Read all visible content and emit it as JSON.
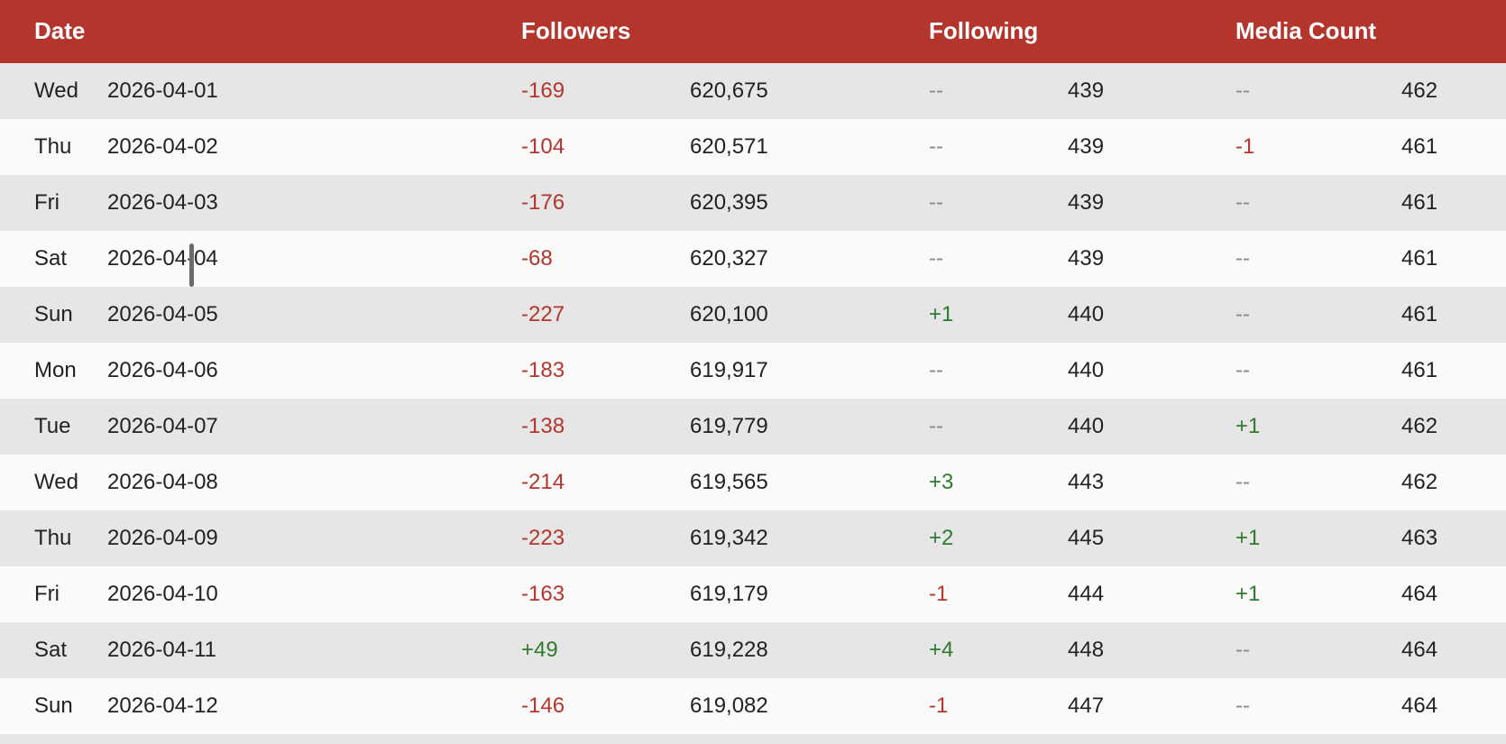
{
  "colors": {
    "header_bg": "#b4352c",
    "negative": "#b4352c",
    "positive": "#2f7a2f",
    "neutral": "#8a8a8a"
  },
  "header": {
    "date": "Date",
    "followers": "Followers",
    "following": "Following",
    "media_count": "Media Count"
  },
  "rows": [
    {
      "day": "Wed",
      "date": "2026-04-01",
      "followers_change": "-169",
      "followers": "620,675",
      "following_change": "--",
      "following": "439",
      "media_change": "--",
      "media": "462"
    },
    {
      "day": "Thu",
      "date": "2026-04-02",
      "followers_change": "-104",
      "followers": "620,571",
      "following_change": "--",
      "following": "439",
      "media_change": "-1",
      "media": "461"
    },
    {
      "day": "Fri",
      "date": "2026-04-03",
      "followers_change": "-176",
      "followers": "620,395",
      "following_change": "--",
      "following": "439",
      "media_change": "--",
      "media": "461"
    },
    {
      "day": "Sat",
      "date": "2026-04-04",
      "followers_change": "-68",
      "followers": "620,327",
      "following_change": "--",
      "following": "439",
      "media_change": "--",
      "media": "461"
    },
    {
      "day": "Sun",
      "date": "2026-04-05",
      "followers_change": "-227",
      "followers": "620,100",
      "following_change": "+1",
      "following": "440",
      "media_change": "--",
      "media": "461"
    },
    {
      "day": "Mon",
      "date": "2026-04-06",
      "followers_change": "-183",
      "followers": "619,917",
      "following_change": "--",
      "following": "440",
      "media_change": "--",
      "media": "461"
    },
    {
      "day": "Tue",
      "date": "2026-04-07",
      "followers_change": "-138",
      "followers": "619,779",
      "following_change": "--",
      "following": "440",
      "media_change": "+1",
      "media": "462"
    },
    {
      "day": "Wed",
      "date": "2026-04-08",
      "followers_change": "-214",
      "followers": "619,565",
      "following_change": "+3",
      "following": "443",
      "media_change": "--",
      "media": "462"
    },
    {
      "day": "Thu",
      "date": "2026-04-09",
      "followers_change": "-223",
      "followers": "619,342",
      "following_change": "+2",
      "following": "445",
      "media_change": "+1",
      "media": "463"
    },
    {
      "day": "Fri",
      "date": "2026-04-10",
      "followers_change": "-163",
      "followers": "619,179",
      "following_change": "-1",
      "following": "444",
      "media_change": "+1",
      "media": "464"
    },
    {
      "day": "Sat",
      "date": "2026-04-11",
      "followers_change": "+49",
      "followers": "619,228",
      "following_change": "+4",
      "following": "448",
      "media_change": "--",
      "media": "464"
    },
    {
      "day": "Sun",
      "date": "2026-04-12",
      "followers_change": "-146",
      "followers": "619,082",
      "following_change": "-1",
      "following": "447",
      "media_change": "--",
      "media": "464"
    }
  ]
}
